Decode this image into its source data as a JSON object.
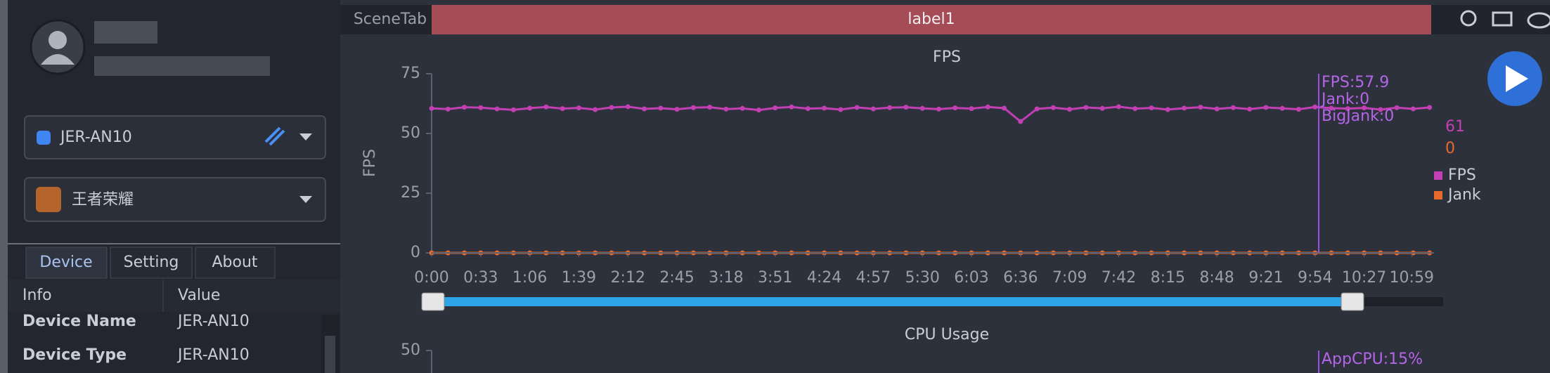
{
  "sidebar": {
    "device": "JER-AN10",
    "app": "王者荣耀",
    "tabs": [
      "Device",
      "Setting",
      "About"
    ],
    "table": {
      "header": [
        "Info",
        "Value"
      ],
      "rows": [
        [
          "Device Name",
          "JER-AN10"
        ],
        [
          "Device Type",
          "JER-AN10"
        ]
      ]
    }
  },
  "scene_tab": "SceneTab",
  "label": "label1",
  "chart_data": [
    {
      "type": "line",
      "title": "FPS",
      "y_label": "FPS",
      "tooltip": [
        "FPS:57.9",
        "Jank:0",
        "BigJank:0"
      ],
      "x": [
        0,
        11,
        22,
        33,
        44,
        55,
        66,
        77,
        88,
        99,
        110,
        121,
        132,
        143,
        154,
        165,
        176,
        187,
        198,
        209,
        220,
        231,
        242,
        253,
        264,
        275,
        286,
        297,
        308,
        319,
        330,
        341,
        352,
        363,
        374,
        385,
        396,
        407,
        418,
        429,
        440,
        451,
        462,
        473,
        484,
        495,
        506,
        517,
        528,
        539,
        550,
        561,
        572,
        583,
        594,
        605,
        616,
        627,
        638,
        649,
        660,
        671
      ],
      "series": [
        {
          "name": "FPS",
          "color": "#c23fb4",
          "latest": 61,
          "values": [
            60.5,
            60.2,
            61.0,
            60.8,
            60.3,
            59.9,
            60.6,
            61.1,
            60.4,
            60.7,
            60.0,
            60.9,
            61.2,
            60.3,
            60.6,
            60.1,
            60.8,
            61.0,
            60.2,
            60.5,
            59.8,
            60.7,
            61.1,
            60.4,
            60.6,
            60.0,
            60.9,
            60.3,
            60.8,
            61.0,
            60.5,
            60.2,
            60.7,
            60.4,
            61.1,
            60.6,
            55.0,
            60.3,
            60.8,
            60.1,
            60.9,
            60.5,
            61.2,
            60.4,
            60.7,
            60.0,
            60.6,
            61.0,
            60.3,
            60.8,
            60.2,
            60.9,
            60.5,
            60.1,
            61.1,
            60.6,
            60.4,
            60.7,
            60.0,
            60.8,
            60.3,
            60.9
          ]
        },
        {
          "name": "Jank",
          "color": "#e8692c",
          "latest": 0,
          "values": [
            0,
            0,
            0,
            0,
            0,
            0,
            0,
            0,
            0,
            0,
            0,
            0,
            0,
            0,
            0,
            0,
            0,
            0,
            0,
            0,
            0,
            0,
            0,
            0,
            0,
            0,
            0,
            0,
            0,
            0,
            0,
            0,
            0,
            0,
            0,
            0,
            0,
            0,
            0,
            0,
            0,
            0,
            0,
            0,
            0,
            0,
            0,
            0,
            0,
            0,
            0,
            0,
            0,
            0,
            0,
            0,
            0,
            0,
            0,
            0,
            0,
            0
          ]
        }
      ],
      "xlim": [
        0,
        674
      ],
      "xticks": [
        {
          "value": 0,
          "label": "0:00"
        },
        {
          "value": 33,
          "label": "0:33"
        },
        {
          "value": 66,
          "label": "1:06"
        },
        {
          "value": 99,
          "label": "1:39"
        },
        {
          "value": 132,
          "label": "2:12"
        },
        {
          "value": 165,
          "label": "2:45"
        },
        {
          "value": 198,
          "label": "3:18"
        },
        {
          "value": 231,
          "label": "3:51"
        },
        {
          "value": 264,
          "label": "4:24"
        },
        {
          "value": 297,
          "label": "4:57"
        },
        {
          "value": 330,
          "label": "5:30"
        },
        {
          "value": 363,
          "label": "6:03"
        },
        {
          "value": 396,
          "label": "6:36"
        },
        {
          "value": 429,
          "label": "7:09"
        },
        {
          "value": 462,
          "label": "7:42"
        },
        {
          "value": 495,
          "label": "8:15"
        },
        {
          "value": 528,
          "label": "8:48"
        },
        {
          "value": 561,
          "label": "9:21"
        },
        {
          "value": 594,
          "label": "9:54"
        },
        {
          "value": 627,
          "label": "10:27"
        },
        {
          "value": 659,
          "label": "10:59"
        }
      ],
      "ylim": [
        0,
        75
      ],
      "yticks": [
        0,
        25,
        50,
        75
      ]
    },
    {
      "type": "line",
      "title": "CPU Usage",
      "tooltip": [
        "AppCPU:15%"
      ],
      "ylim": [
        0,
        50
      ],
      "yticks": [
        50
      ]
    }
  ]
}
